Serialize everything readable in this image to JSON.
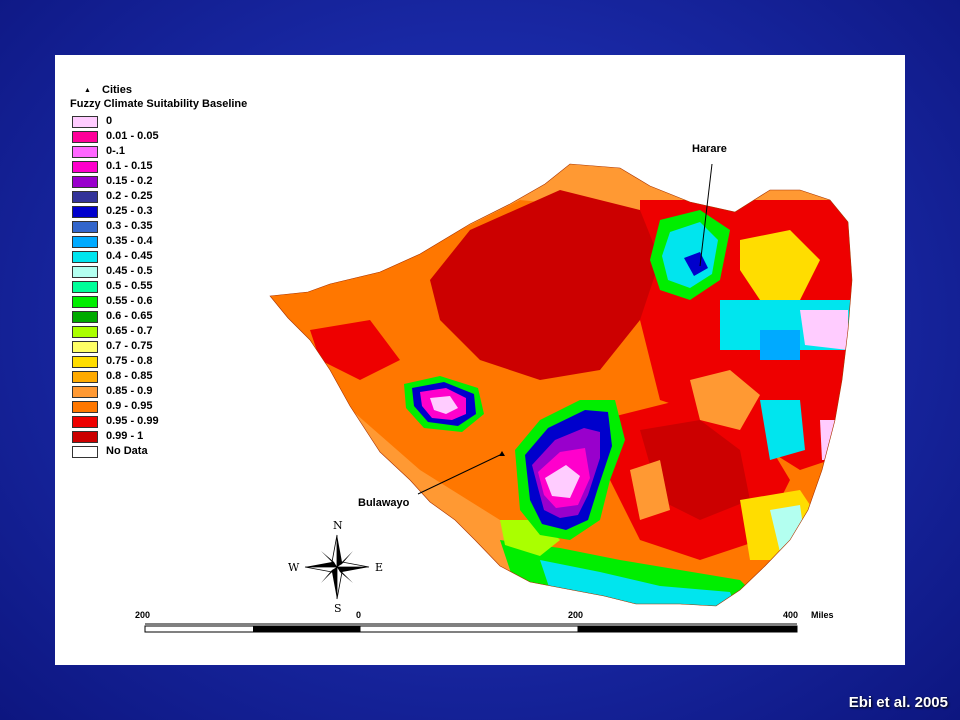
{
  "legend": {
    "cities_label": "Cities",
    "title": "Fuzzy Climate Suitability Baseline",
    "classes": [
      {
        "label": "0",
        "color": "#ffccff"
      },
      {
        "label": "0.01 - 0.05",
        "color": "#ff0099"
      },
      {
        "label": "0-.1",
        "color": "#ff66ff"
      },
      {
        "label": "0.1 - 0.15",
        "color": "#ff00cc"
      },
      {
        "label": "0.15 - 0.2",
        "color": "#9900cc"
      },
      {
        "label": "0.2 - 0.25",
        "color": "#333399"
      },
      {
        "label": "0.25 - 0.3",
        "color": "#0000cc"
      },
      {
        "label": "0.3 - 0.35",
        "color": "#3366cc"
      },
      {
        "label": "0.35 - 0.4",
        "color": "#00aaff"
      },
      {
        "label": "0.4 - 0.45",
        "color": "#00e5ee"
      },
      {
        "label": "0.45 - 0.5",
        "color": "#b3fff0"
      },
      {
        "label": "0.5 - 0.55",
        "color": "#00ff99"
      },
      {
        "label": "0.55 - 0.6",
        "color": "#00ee00"
      },
      {
        "label": "0.6 - 0.65",
        "color": "#00aa00"
      },
      {
        "label": "0.65 - 0.7",
        "color": "#aaff00"
      },
      {
        "label": "0.7 - 0.75",
        "color": "#ffff66"
      },
      {
        "label": "0.75 - 0.8",
        "color": "#ffdd00"
      },
      {
        "label": "0.8 - 0.85",
        "color": "#ffaa00"
      },
      {
        "label": "0.85 - 0.9",
        "color": "#ff9933"
      },
      {
        "label": "0.9 - 0.95",
        "color": "#ff7700"
      },
      {
        "label": "0.95 - 0.99",
        "color": "#ee0000"
      },
      {
        "label": "0.99 - 1",
        "color": "#cc0000"
      },
      {
        "label": "No Data",
        "color": "#ffffff"
      }
    ]
  },
  "cities": {
    "harare": "Harare",
    "bulawayo": "Bulawayo"
  },
  "compass": {
    "n": "N",
    "s": "S",
    "e": "E",
    "w": "W"
  },
  "scale": {
    "labels": [
      "200",
      "0",
      "200",
      "400"
    ],
    "unit": "Miles"
  },
  "credit": "Ebi et al. 2005"
}
